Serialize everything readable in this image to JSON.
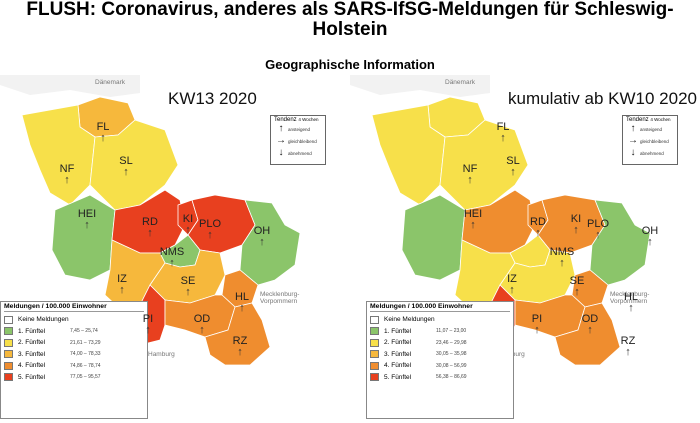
{
  "title_line1": "FLUSH: Coronavirus, anderes als SARS-IfSG-Meldungen für Schleswig-",
  "title_line2": "Holstein",
  "subtitle": "Geographische Information",
  "colors": {
    "none": "#ffffff",
    "q1": "#8bc56a",
    "q2": "#f7e04a",
    "q3": "#f6b83c",
    "q4": "#ef8d2f",
    "q5": "#e8401f",
    "sea": "#ffffff"
  },
  "legend": {
    "title": "Meldungen / 100.000 Einwohner",
    "none_label": "Keine Meldungen",
    "quintiles": [
      "1. Fünftel",
      "2. Fünftel",
      "3. Fünftel",
      "4. Fünftel",
      "5. Fünftel"
    ]
  },
  "tendency": {
    "title": "Tendenz",
    "suffix": "4 Wochen",
    "rows": [
      "ansteigend",
      "gleichbleibend",
      "abnehmend"
    ]
  },
  "geo_labels": {
    "denmark": "Dänemark",
    "mv": "Mecklenburg-Vorpommern",
    "hamburg": "Hamburg"
  },
  "maps": [
    {
      "title": "KW13 2020",
      "legend_ranges": [
        "7,45 – 25,74",
        "21,61 – 73,29",
        "74,00 – 78,33",
        "74,86 – 78,74",
        "77,05 – 95,57"
      ],
      "districts": [
        {
          "code": "FL",
          "quintile": 3,
          "arrow": "↑"
        },
        {
          "code": "SL",
          "quintile": 2,
          "arrow": "↑"
        },
        {
          "code": "NF",
          "quintile": 2,
          "arrow": "↑"
        },
        {
          "code": "HEI",
          "quintile": 1,
          "arrow": "↑"
        },
        {
          "code": "RD",
          "quintile": 5,
          "arrow": "↑"
        },
        {
          "code": "KI",
          "quintile": 5,
          "arrow": "↑"
        },
        {
          "code": "PLO",
          "quintile": 5,
          "arrow": "↑"
        },
        {
          "code": "OH",
          "quintile": 1,
          "arrow": "↑"
        },
        {
          "code": "NMS",
          "quintile": 1,
          "arrow": "↑"
        },
        {
          "code": "IZ",
          "quintile": 3,
          "arrow": "↑"
        },
        {
          "code": "SE",
          "quintile": 3,
          "arrow": "↑"
        },
        {
          "code": "HL",
          "quintile": 4,
          "arrow": "↑"
        },
        {
          "code": "PI",
          "quintile": 5,
          "arrow": "↑"
        },
        {
          "code": "OD",
          "quintile": 4,
          "arrow": "↑"
        },
        {
          "code": "RZ",
          "quintile": 4,
          "arrow": "↑"
        }
      ]
    },
    {
      "title": "kumulativ ab KW10 2020",
      "legend_ranges": [
        "11,07 – 23,00",
        "23,46 – 29,98",
        "30,05 – 35,98",
        "30,08 – 56,99",
        "56,38 – 86,69"
      ],
      "districts": [
        {
          "code": "FL",
          "quintile": 2,
          "arrow": "↑"
        },
        {
          "code": "SL",
          "quintile": 2,
          "arrow": "↑"
        },
        {
          "code": "NF",
          "quintile": 2,
          "arrow": "↑"
        },
        {
          "code": "HEI",
          "quintile": 1,
          "arrow": "↑"
        },
        {
          "code": "RD",
          "quintile": 4,
          "arrow": "↑"
        },
        {
          "code": "KI",
          "quintile": 4,
          "arrow": "↑"
        },
        {
          "code": "PLO",
          "quintile": 4,
          "arrow": "↑"
        },
        {
          "code": "OH",
          "quintile": 1,
          "arrow": "↑"
        },
        {
          "code": "NMS",
          "quintile": 2,
          "arrow": "↑"
        },
        {
          "code": "IZ",
          "quintile": 2,
          "arrow": "↑"
        },
        {
          "code": "SE",
          "quintile": 2,
          "arrow": "↑"
        },
        {
          "code": "HL",
          "quintile": 4,
          "arrow": "↑"
        },
        {
          "code": "PI",
          "quintile": 5,
          "arrow": "↑"
        },
        {
          "code": "OD",
          "quintile": 4,
          "arrow": "↑"
        },
        {
          "code": "RZ",
          "quintile": 4,
          "arrow": "↑"
        }
      ]
    }
  ]
}
